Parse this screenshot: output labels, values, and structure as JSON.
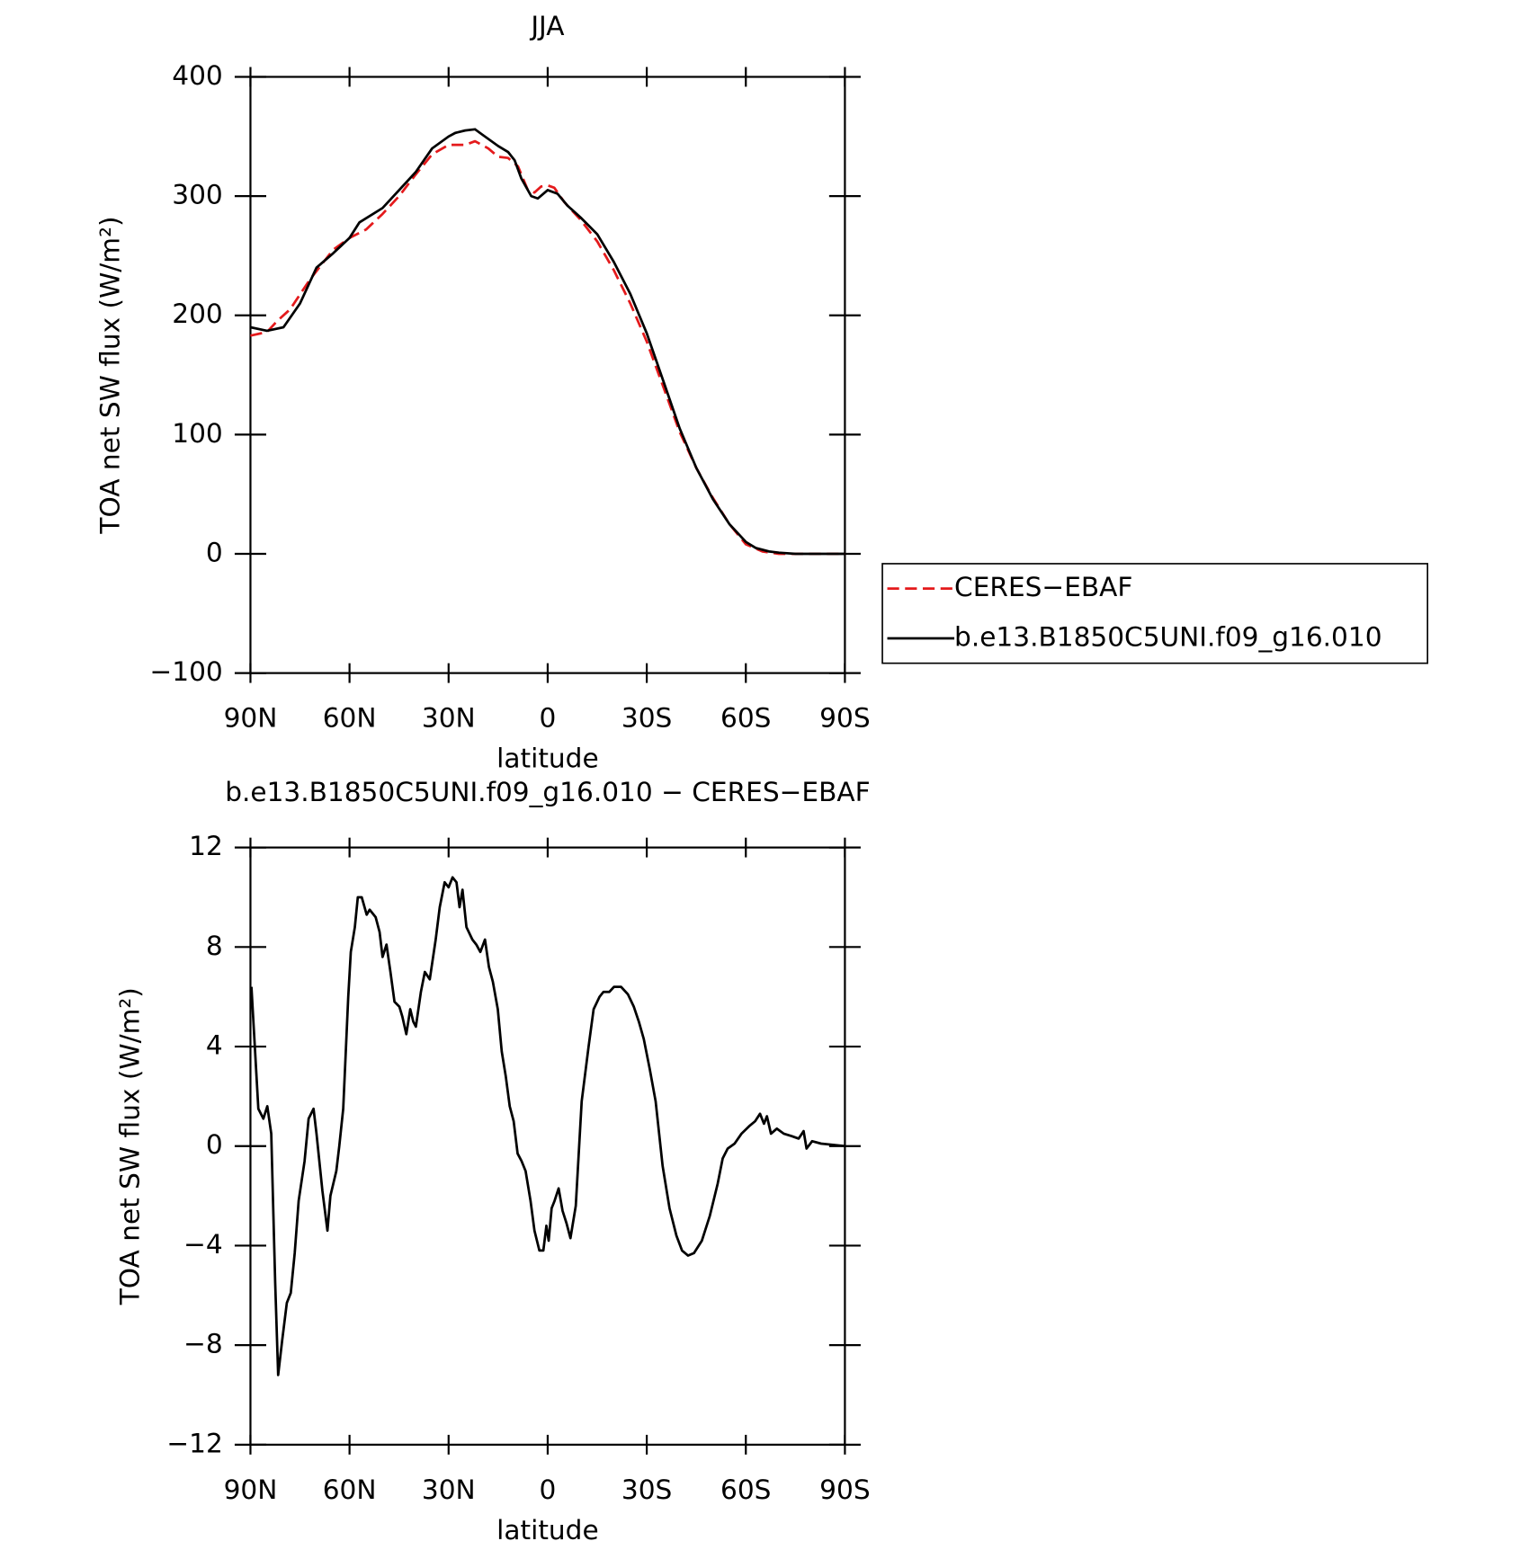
{
  "chart_data": [
    {
      "type": "line",
      "title": "JJA",
      "xlabel": "latitude",
      "ylabel": "TOA net SW flux (W/m²)",
      "xlim": [
        90,
        -90
      ],
      "xticks": [
        {
          "value": 90,
          "label": "90N"
        },
        {
          "value": 60,
          "label": "60N"
        },
        {
          "value": 30,
          "label": "30N"
        },
        0,
        {
          "value": -30,
          "label": "30S"
        },
        {
          "value": -60,
          "label": "60S"
        },
        {
          "value": -90,
          "label": "90S"
        }
      ],
      "ylim": [
        -100,
        400
      ],
      "yticks": [
        {
          "value": -100,
          "label": "−100"
        },
        0,
        100,
        200,
        300,
        400
      ],
      "series": [
        {
          "name": "CERES−EBAF",
          "color": "#e41a1c",
          "style": "dashed",
          "x": [
            90,
            85,
            82,
            78,
            72,
            65,
            60,
            55,
            50,
            45,
            40,
            35,
            30,
            25,
            22,
            18,
            15,
            12,
            9,
            6,
            4,
            2,
            0,
            -2,
            -5,
            -10,
            -15,
            -20,
            -25,
            -30,
            -35,
            -40,
            -45,
            -50,
            -55,
            -60,
            -65,
            -70,
            -90
          ],
          "values": [
            183,
            186,
            195,
            205,
            230,
            255,
            265,
            272,
            285,
            300,
            318,
            335,
            343,
            343,
            346,
            340,
            333,
            332,
            325,
            305,
            303,
            308,
            309,
            307,
            295,
            280,
            262,
            238,
            210,
            178,
            140,
            102,
            72,
            47,
            25,
            8,
            2,
            0,
            0
          ]
        },
        {
          "name": "b.e13.B1850C5UNI.f09_g16.010",
          "color": "#000000",
          "style": "solid",
          "x": [
            90,
            85,
            80,
            75,
            70,
            65,
            60,
            57,
            50,
            45,
            40,
            35,
            30,
            28,
            25,
            22,
            20,
            15,
            12,
            10,
            8,
            5,
            3,
            0,
            -3,
            -6,
            -10,
            -15,
            -20,
            -25,
            -30,
            -35,
            -40,
            -45,
            -50,
            -55,
            -60,
            -63,
            -67,
            -70,
            -75,
            -90
          ],
          "values": [
            190,
            187,
            190,
            210,
            240,
            252,
            265,
            278,
            290,
            305,
            320,
            340,
            350,
            353,
            355,
            356,
            352,
            342,
            337,
            330,
            315,
            300,
            298,
            305,
            302,
            292,
            282,
            268,
            245,
            218,
            185,
            145,
            105,
            72,
            46,
            25,
            10,
            5,
            2,
            1,
            0,
            0
          ]
        }
      ]
    },
    {
      "type": "line",
      "title": "b.e13.B1850C5UNI.f09_g16.010 − CERES−EBAF",
      "xlabel": "latitude",
      "ylabel": "TOA net SW flux (W/m²)",
      "xlim": [
        90,
        -90
      ],
      "xticks": [
        {
          "value": 90,
          "label": "90N"
        },
        {
          "value": 60,
          "label": "60N"
        },
        {
          "value": 30,
          "label": "30N"
        },
        0,
        {
          "value": -30,
          "label": "30S"
        },
        {
          "value": -60,
          "label": "60S"
        },
        {
          "value": -90,
          "label": "90S"
        }
      ],
      "ylim": [
        -12,
        12
      ],
      "yticks": [
        {
          "value": -12,
          "label": "−12"
        },
        {
          "value": -8,
          "label": "−8"
        },
        {
          "value": -4,
          "label": "−4"
        },
        0,
        4,
        8,
        12
      ],
      "series": [
        {
          "color": "#000000",
          "style": "solid",
          "x": [
            89.7,
            87.6,
            86.1,
            84.9,
            83.7,
            82.5,
            81.6,
            80.4,
            79.0,
            77.8,
            76.6,
            75.4,
            73.6,
            72.4,
            70.9,
            70.0,
            68.2,
            66.7,
            65.8,
            64.0,
            63.1,
            61.9,
            60.4,
            59.6,
            58.4,
            57.5,
            56.3,
            54.8,
            53.9,
            52.1,
            50.9,
            50.0,
            48.8,
            47.6,
            46.4,
            44.9,
            44.0,
            42.8,
            41.6,
            40.7,
            39.9,
            38.4,
            37.2,
            35.7,
            33.9,
            32.7,
            31.2,
            30.0,
            28.8,
            27.6,
            26.7,
            25.8,
            24.6,
            22.8,
            21.6,
            20.4,
            19.0,
            17.8,
            16.6,
            15.1,
            13.9,
            12.7,
            11.5,
            10.3,
            9.1,
            7.9,
            6.7,
            5.2,
            4.0,
            2.5,
            1.3,
            0.4,
            -0.3,
            -1.2,
            -2.1,
            -3.3,
            -4.5,
            -5.7,
            -6.9,
            -8.5,
            -10.3,
            -12.4,
            -13.9,
            -15.7,
            -16.9,
            -18.7,
            -20.1,
            -22.2,
            -24.3,
            -26.1,
            -27.6,
            -29.1,
            -30.9,
            -32.7,
            -34.8,
            -36.9,
            -39.0,
            -40.7,
            -42.5,
            -44.3,
            -46.7,
            -49.1,
            -51.5,
            -53.0,
            -54.5,
            -56.6,
            -58.7,
            -61.0,
            -62.8,
            -64.3,
            -65.5,
            -66.4,
            -67.6,
            -69.4,
            -71.5,
            -73.9,
            -76.0,
            -77.5,
            -78.4,
            -80.1,
            -82.8,
            -86.4,
            -90
          ],
          "values": [
            6.4,
            1.5,
            1.1,
            1.6,
            0.5,
            -5.5,
            -9.2,
            -7.8,
            -6.3,
            -5.9,
            -4.3,
            -2.2,
            -0.6,
            1.1,
            1.5,
            0.5,
            -1.8,
            -3.4,
            -2,
            -1,
            0,
            1.5,
            6,
            7.8,
            8.8,
            10,
            10,
            9.3,
            9.5,
            9.2,
            8.6,
            7.6,
            8.1,
            7,
            5.8,
            5.6,
            5.2,
            4.5,
            5.5,
            5,
            4.8,
            6.2,
            7,
            6.7,
            8.3,
            9.6,
            10.6,
            10.4,
            10.8,
            10.6,
            9.6,
            10.3,
            8.8,
            8.3,
            8.1,
            7.8,
            8.3,
            7.2,
            6.6,
            5.5,
            3.8,
            2.8,
            1.6,
            1,
            -0.3,
            -0.6,
            -1,
            -2.2,
            -3.4,
            -4.2,
            -4.2,
            -3.2,
            -3.8,
            -2.5,
            -2.2,
            -1.7,
            -2.6,
            -3.1,
            -3.7,
            -2.4,
            1.8,
            4,
            5.5,
            6,
            6.2,
            6.2,
            6.4,
            6.4,
            6.1,
            5.6,
            5,
            4.3,
            3.1,
            1.8,
            -0.8,
            -2.5,
            -3.6,
            -4.2,
            -4.4,
            -4.3,
            -3.8,
            -2.8,
            -1.5,
            -0.5,
            -0.1,
            0.1,
            0.5,
            0.8,
            1,
            1.3,
            0.9,
            1.2,
            0.5,
            0.7,
            0.5,
            0.4,
            0.3,
            0.6,
            -0.1,
            0.2,
            0.1,
            0.05,
            0
          ]
        }
      ]
    }
  ]
}
